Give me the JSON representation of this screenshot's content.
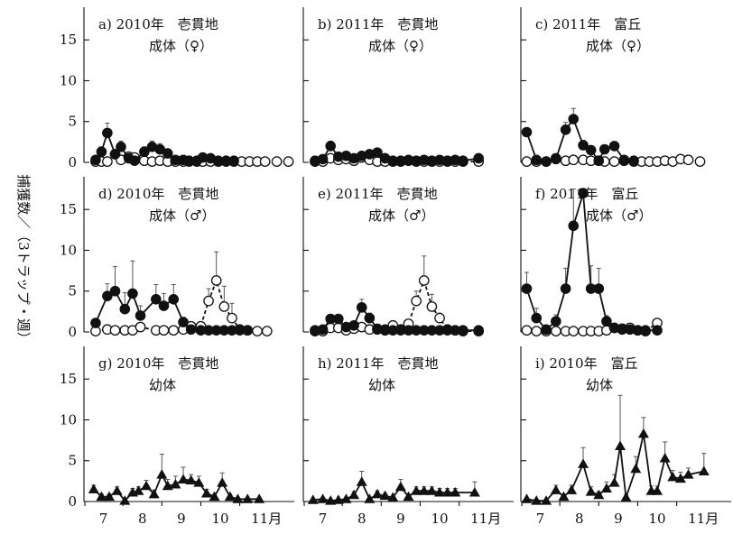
{
  "y_axis_label": "捕獲数／（3トラップ・週）",
  "x_tick_labels": [
    "7",
    "8",
    "9",
    "10",
    "11月"
  ],
  "y_tick_labels": [
    "0",
    "5",
    "10",
    "15"
  ],
  "colors": {
    "ink": "#111111",
    "background": "#ffffff",
    "open_marker": "#ffffff"
  },
  "chart_data": [
    {
      "id": "a",
      "type": "line",
      "title": "a) 2010年　壱貫地",
      "subtitle": "成体（♀）",
      "ylim": [
        0,
        19
      ],
      "xlim": [
        6.5,
        11.9
      ],
      "series": [
        {
          "marker": "filled-circle",
          "line": "solid",
          "x": [
            6.8,
            6.95,
            7.1,
            7.3,
            7.45,
            7.65,
            7.8,
            8.05,
            8.25,
            8.45,
            8.65,
            8.85,
            9.05,
            9.2,
            9.4,
            9.55,
            9.75,
            9.95,
            10.15,
            10.35
          ],
          "y": [
            0.3,
            1.3,
            3.6,
            1.0,
            1.9,
            0.5,
            0.2,
            1.3,
            1.9,
            1.6,
            1.1,
            0.3,
            0.3,
            0.2,
            0.2,
            0.6,
            0.5,
            0.2,
            0.2,
            0.2
          ],
          "err": [
            0,
            0.6,
            1.2,
            0.4,
            0.7,
            0.3,
            0,
            0.6,
            0.7,
            0.7,
            0.5,
            0,
            0,
            0,
            0,
            0.3,
            0.3,
            0,
            0,
            0
          ]
        },
        {
          "marker": "open-circle",
          "line": "dashed",
          "x": [
            6.8,
            6.95,
            7.1,
            7.3,
            7.45,
            7.65,
            7.8,
            8.05,
            8.25,
            8.45,
            8.65,
            8.85,
            9.05,
            9.2,
            9.4,
            9.55,
            9.75,
            9.95,
            10.15,
            10.35,
            10.55,
            10.75,
            10.95,
            11.15,
            11.45,
            11.75
          ],
          "y": [
            0.1,
            0.1,
            0.1,
            1.0,
            0.3,
            0.7,
            0.6,
            0.2,
            0.1,
            0.2,
            0.1,
            0.1,
            0.1,
            0.1,
            0.1,
            0.1,
            0.1,
            0.1,
            0.1,
            0.1,
            0.1,
            0.1,
            0.1,
            0.1,
            0.1,
            0.1
          ],
          "err": []
        }
      ]
    },
    {
      "id": "b",
      "type": "line",
      "title": "b) 2011年　壱貫地",
      "subtitle": "成体（♀）",
      "ylim": [
        0,
        19
      ],
      "xlim": [
        6.5,
        11.9
      ],
      "series": [
        {
          "marker": "filled-circle",
          "line": "solid",
          "x": [
            6.8,
            7.0,
            7.2,
            7.4,
            7.6,
            7.8,
            8.0,
            8.2,
            8.4,
            8.6,
            8.8,
            9.0,
            9.2,
            9.4,
            9.6,
            9.8,
            10.0,
            10.2,
            10.4,
            10.6,
            11.0
          ],
          "y": [
            0.2,
            0.4,
            2.0,
            0.7,
            0.8,
            0.5,
            0.8,
            1.0,
            1.2,
            0.5,
            0.2,
            0.2,
            0.3,
            0.2,
            0.3,
            0.2,
            0.3,
            0.2,
            0.3,
            0.2,
            0.5
          ],
          "err": [
            0,
            0,
            0.6,
            0,
            0,
            0,
            0,
            0.4,
            0.4,
            0,
            0,
            0,
            0,
            0,
            0,
            0,
            0,
            0,
            0,
            0,
            0
          ]
        },
        {
          "marker": "open-circle",
          "line": "dashed",
          "x": [
            6.8,
            7.0,
            7.2,
            7.4,
            7.6,
            7.8,
            8.0,
            8.2,
            8.4,
            8.6,
            8.8,
            9.0,
            9.2,
            9.4,
            9.6,
            9.8,
            10.0,
            10.2,
            10.4,
            10.6,
            11.0
          ],
          "y": [
            0.1,
            0.1,
            0.5,
            0.3,
            0.4,
            0.2,
            0.6,
            0.3,
            0.1,
            0.1,
            0.1,
            0.1,
            0.2,
            0.1,
            0.1,
            0.1,
            0.1,
            0.1,
            0.1,
            0.1,
            0.1
          ],
          "err": []
        }
      ]
    },
    {
      "id": "c",
      "type": "line",
      "title": "c) 2011年　富丘",
      "subtitle": "成体（♀）",
      "ylim": [
        0,
        19
      ],
      "xlim": [
        6.5,
        11.9
      ],
      "series": [
        {
          "marker": "filled-circle",
          "line": "solid",
          "x": [
            6.65,
            6.9,
            7.15,
            7.4,
            7.65,
            7.85,
            8.1,
            8.3,
            8.5,
            8.65,
            8.9,
            9.15,
            9.4
          ],
          "y": [
            3.7,
            0.3,
            0.1,
            0.4,
            4.0,
            5.3,
            2.1,
            1.5,
            0.2,
            1.6,
            2.0,
            0.3,
            0.2
          ],
          "err": [
            0,
            0,
            0,
            0,
            0.9,
            1.3,
            0.6,
            0.5,
            0,
            0.5,
            0,
            0,
            0
          ]
        },
        {
          "marker": "open-circle",
          "line": "dashed",
          "x": [
            6.65,
            6.9,
            7.15,
            7.4,
            7.65,
            7.85,
            8.1,
            8.3,
            8.5,
            8.65,
            8.9,
            9.15,
            9.4,
            9.6,
            9.8,
            10.0,
            10.2,
            10.4,
            10.6,
            10.8,
            11.1
          ],
          "y": [
            0.1,
            0.1,
            0.1,
            0.5,
            0.2,
            0.3,
            0.3,
            0.2,
            0.2,
            0.1,
            0.1,
            0.2,
            0.1,
            0.1,
            0.1,
            0.1,
            0.2,
            0.1,
            0.4,
            0.3,
            0.1
          ],
          "err": []
        }
      ]
    },
    {
      "id": "d",
      "type": "line",
      "title": "d) 2010年　壱貫地",
      "subtitle": "成体（♂）",
      "ylim": [
        0,
        19
      ],
      "xlim": [
        6.5,
        11.9
      ],
      "series": [
        {
          "marker": "filled-circle",
          "line": "solid",
          "x": [
            6.8,
            7.1,
            7.3,
            7.55,
            7.75,
            7.95,
            8.35,
            8.55,
            8.8,
            9.05,
            9.25,
            9.5,
            9.7,
            9.9,
            10.1,
            10.3,
            10.5,
            10.7
          ],
          "y": [
            1.1,
            4.4,
            5.0,
            2.8,
            4.7,
            2.0,
            4.0,
            3.2,
            4.0,
            1.2,
            0.3,
            0.2,
            0.2,
            0.2,
            0.2,
            0.2,
            0.2,
            0.2
          ],
          "err": [
            0,
            1.5,
            3.0,
            2.0,
            4.0,
            1.2,
            1.8,
            1.5,
            1.8,
            0.6,
            0,
            0,
            0,
            0,
            0,
            0,
            0,
            0
          ]
        },
        {
          "marker": "open-circle",
          "line": "dashed",
          "x": [
            6.8,
            7.1,
            7.3,
            7.55,
            7.75,
            7.95,
            8.35,
            8.55,
            8.8,
            9.05,
            9.25,
            9.5,
            9.7,
            9.9,
            10.1,
            10.3,
            10.5,
            10.7,
            10.95,
            11.2
          ],
          "y": [
            0.1,
            0.3,
            0.2,
            0.2,
            0.2,
            0.6,
            0.2,
            0.2,
            0.2,
            0.3,
            0.7,
            0.7,
            3.8,
            6.3,
            3.1,
            1.7,
            0.3,
            0.2,
            0.1,
            0.1
          ],
          "err": [
            0,
            0,
            0,
            0,
            0,
            0,
            0,
            0,
            0,
            0,
            0,
            0,
            1.5,
            3.5,
            2.5,
            1.8,
            0,
            0,
            0,
            0
          ]
        }
      ]
    },
    {
      "id": "e",
      "type": "line",
      "title": "e) 2011年　壱貫地",
      "subtitle": "成体（♂）",
      "ylim": [
        0,
        19
      ],
      "xlim": [
        6.5,
        11.9
      ],
      "series": [
        {
          "marker": "filled-circle",
          "line": "solid",
          "x": [
            6.8,
            7.0,
            7.2,
            7.4,
            7.6,
            7.8,
            8.0,
            8.2,
            8.4,
            8.6,
            8.8,
            9.0,
            9.2,
            9.4,
            9.6,
            9.8,
            10.0,
            10.2,
            10.4,
            10.6,
            11.0
          ],
          "y": [
            0.2,
            0.3,
            1.6,
            1.6,
            0.6,
            0.8,
            3.0,
            1.7,
            0.4,
            0.3,
            0.2,
            0.2,
            0.2,
            0.2,
            0.2,
            0.2,
            0.2,
            0.2,
            0.2,
            0.2,
            0.2
          ],
          "err": [
            0,
            0,
            0.5,
            0.5,
            0,
            0.3,
            1.0,
            0.6,
            0,
            0,
            0,
            0,
            0,
            0,
            0,
            0,
            0,
            0,
            0,
            0,
            0
          ]
        },
        {
          "marker": "open-circle",
          "line": "dashed",
          "x": [
            6.8,
            7.0,
            7.2,
            7.4,
            7.6,
            7.8,
            8.0,
            8.2,
            8.4,
            8.6,
            8.8,
            9.0,
            9.2,
            9.4,
            9.6,
            9.8,
            10.0,
            10.2,
            10.4,
            10.6,
            11.0
          ],
          "y": [
            0.1,
            0.1,
            0.5,
            0.5,
            0.2,
            0.4,
            0.6,
            0.3,
            0.3,
            0.2,
            0.8,
            0.3,
            1.0,
            3.8,
            6.3,
            3.1,
            1.7,
            0.3,
            0.2,
            0.1,
            0.1
          ],
          "err": [
            0,
            0,
            0,
            0,
            0,
            0,
            0,
            0,
            0,
            0,
            0,
            0,
            0,
            1.2,
            3.0,
            1.5,
            0.6,
            0,
            0,
            0,
            0
          ]
        }
      ]
    },
    {
      "id": "f",
      "type": "line",
      "title": "f) 2011年　富丘",
      "subtitle": "成体（♂）",
      "ylim": [
        0,
        19
      ],
      "xlim": [
        6.5,
        11.9
      ],
      "series": [
        {
          "marker": "filled-circle",
          "line": "solid",
          "x": [
            6.65,
            6.9,
            7.15,
            7.4,
            7.65,
            7.85,
            8.1,
            8.3,
            8.5,
            8.7,
            8.9,
            9.1,
            9.3,
            9.5,
            9.7,
            10.0
          ],
          "y": [
            5.3,
            1.7,
            0.3,
            1.3,
            5.3,
            13.0,
            17.0,
            5.3,
            5.3,
            1.3,
            0.5,
            0.3,
            0.3,
            0.2,
            0.2,
            0.2
          ],
          "err": [
            2.0,
            1.2,
            0,
            0.8,
            2.5,
            4.5,
            0,
            2.8,
            2.5,
            0.7,
            0,
            0,
            0,
            0,
            0,
            0
          ]
        },
        {
          "marker": "open-circle",
          "line": "dashed",
          "x": [
            6.65,
            6.9,
            7.15,
            7.4,
            7.65,
            7.85,
            8.1,
            8.3,
            8.5,
            8.7,
            8.9,
            9.1,
            9.3,
            9.5,
            9.7,
            10.0
          ],
          "y": [
            0.2,
            0.1,
            0.1,
            0.1,
            0.1,
            0.1,
            0.1,
            0.1,
            0.1,
            0.2,
            0.5,
            0.4,
            0.5,
            0.2,
            0.1,
            1.1
          ],
          "err": []
        }
      ]
    },
    {
      "id": "g",
      "type": "line",
      "title": "g) 2010年　壱貫地",
      "subtitle": "幼体",
      "ylim": [
        0,
        19
      ],
      "xlim": [
        6.5,
        11.9
      ],
      "series": [
        {
          "marker": "filled-triangle",
          "line": "solid",
          "x": [
            6.75,
            6.95,
            7.15,
            7.35,
            7.55,
            7.75,
            7.9,
            8.1,
            8.3,
            8.5,
            8.65,
            8.85,
            9.05,
            9.25,
            9.45,
            9.65,
            9.85,
            10.05,
            10.25,
            10.45,
            10.7,
            11.0
          ],
          "y": [
            1.5,
            0.6,
            0.6,
            1.3,
            0.1,
            1.1,
            1.3,
            1.9,
            0.9,
            3.3,
            1.9,
            2.1,
            2.7,
            2.6,
            2.3,
            1.0,
            0.6,
            2.3,
            0.6,
            0.3,
            0.3,
            0.3
          ],
          "err": [
            0.5,
            0.3,
            0.3,
            0.5,
            0,
            0.5,
            0.5,
            0.7,
            0.5,
            2.5,
            0.8,
            1.0,
            1.5,
            0.7,
            0.8,
            0.5,
            0.3,
            1.2,
            0.3,
            0,
            0,
            0
          ]
        }
      ]
    },
    {
      "id": "h",
      "type": "line",
      "title": "h) 2011年　壱貫地",
      "subtitle": "幼体",
      "ylim": [
        0,
        19
      ],
      "xlim": [
        6.5,
        11.9
      ],
      "series": [
        {
          "marker": "filled-triangle",
          "line": "solid",
          "x": [
            6.75,
            7.0,
            7.2,
            7.4,
            7.6,
            7.8,
            8.0,
            8.2,
            8.4,
            8.6,
            8.8,
            9.0,
            9.2,
            9.4,
            9.6,
            9.8,
            10.0,
            10.2,
            10.4,
            10.9
          ],
          "y": [
            0.2,
            0.3,
            0.1,
            0.2,
            0.3,
            0.8,
            2.4,
            0.3,
            0.9,
            0.7,
            0.5,
            1.8,
            0.6,
            1.3,
            1.3,
            1.3,
            1.1,
            1.1,
            1.1,
            1.1
          ],
          "err": [
            0,
            0,
            0,
            0,
            0,
            0.4,
            1.3,
            0,
            0.4,
            0.3,
            0,
            0.9,
            0.3,
            0.5,
            0.5,
            0.5,
            0.5,
            0.5,
            0.5,
            1.3
          ]
        }
      ]
    },
    {
      "id": "i",
      "type": "line",
      "title": "i) 2010年　富丘",
      "subtitle": "幼体",
      "ylim": [
        0,
        19
      ],
      "xlim": [
        6.5,
        11.9
      ],
      "series": [
        {
          "marker": "filled-triangle",
          "line": "solid",
          "x": [
            6.65,
            6.9,
            7.15,
            7.4,
            7.6,
            7.8,
            8.1,
            8.3,
            8.5,
            8.7,
            8.9,
            9.05,
            9.2,
            9.45,
            9.65,
            9.85,
            10.0,
            10.2,
            10.4,
            10.6,
            10.8,
            11.2
          ],
          "y": [
            0.3,
            0.1,
            0.1,
            1.4,
            0.6,
            1.4,
            4.6,
            1.2,
            0.8,
            1.6,
            2.3,
            6.8,
            0.5,
            4.0,
            8.3,
            1.3,
            1.3,
            5.3,
            3.0,
            2.8,
            3.3,
            3.7
          ],
          "err": [
            0,
            0,
            0,
            0.6,
            0.3,
            0.6,
            2.0,
            0.6,
            0.4,
            0.8,
            1.0,
            6.2,
            0.3,
            1.5,
            2.0,
            0.6,
            0.6,
            2.0,
            0.8,
            0.8,
            0.8,
            2.2
          ]
        }
      ]
    }
  ]
}
